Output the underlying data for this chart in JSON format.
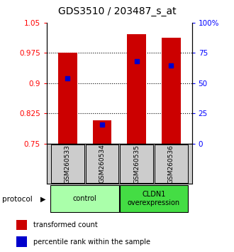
{
  "title": "GDS3510 / 203487_s_at",
  "samples": [
    "GSM260533",
    "GSM260534",
    "GSM260535",
    "GSM260536"
  ],
  "bar_bottom": 0.75,
  "bar_tops": [
    0.976,
    0.808,
    1.022,
    1.012
  ],
  "percentile_values": [
    0.912,
    0.797,
    0.955,
    0.944
  ],
  "ylim_left": [
    0.75,
    1.05
  ],
  "ylim_right": [
    0,
    100
  ],
  "yticks_left": [
    0.75,
    0.825,
    0.9,
    0.975,
    1.05
  ],
  "yticks_right": [
    0,
    25,
    50,
    75,
    100
  ],
  "ytick_labels_left": [
    "0.75",
    "0.825",
    "0.9",
    "0.975",
    "1.05"
  ],
  "ytick_labels_right": [
    "0",
    "25",
    "50",
    "75",
    "100%"
  ],
  "bar_color": "#cc0000",
  "marker_color": "#0000cc",
  "bar_width": 0.55,
  "groups": [
    {
      "label": "control",
      "samples": [
        0,
        1
      ],
      "color": "#aaffaa"
    },
    {
      "label": "CLDN1\noverexpression",
      "samples": [
        2,
        3
      ],
      "color": "#44dd44"
    }
  ],
  "protocol_label": "protocol",
  "legend_red_label": "transformed count",
  "legend_blue_label": "percentile rank within the sample",
  "background_color": "#ffffff",
  "plot_bg_color": "#ffffff",
  "sample_box_color": "#cccccc",
  "title_fontsize": 10,
  "tick_fontsize": 7.5,
  "label_fontsize": 7.5
}
